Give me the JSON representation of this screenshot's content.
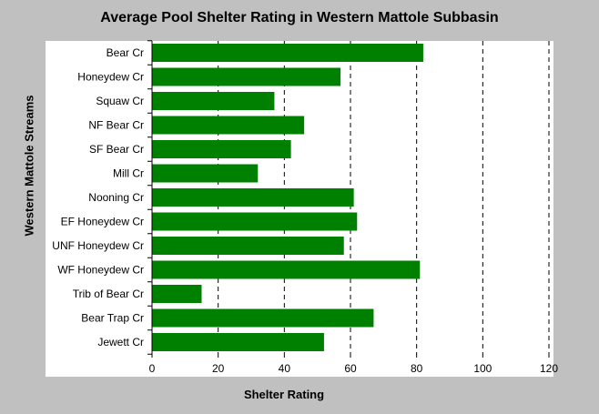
{
  "chart_data": {
    "type": "bar",
    "orientation": "horizontal",
    "title": "Average Pool Shelter Rating in Western Mattole Subbasin",
    "xlabel": "Shelter Rating",
    "ylabel": "Western Mattole Streams",
    "categories": [
      "Bear Cr",
      "Honeydew Cr",
      "Squaw Cr",
      "NF Bear Cr",
      "SF Bear Cr",
      "Mill Cr",
      "Nooning Cr",
      "EF Honeydew Cr",
      "UNF Honeydew Cr",
      "WF Honeydew Cr",
      "Trib of Bear Cr",
      "Bear Trap Cr",
      "Jewett Cr"
    ],
    "values": [
      82,
      57,
      37,
      46,
      42,
      32,
      61,
      62,
      58,
      81,
      15,
      67,
      52
    ],
    "xlim": [
      0,
      120
    ],
    "xticks": [
      0,
      20,
      40,
      60,
      80,
      100,
      120
    ],
    "grid": "vertical-dashed",
    "bar_color": "#008000",
    "plot_background": "#ffffff",
    "page_background": "#c0c0c0"
  }
}
